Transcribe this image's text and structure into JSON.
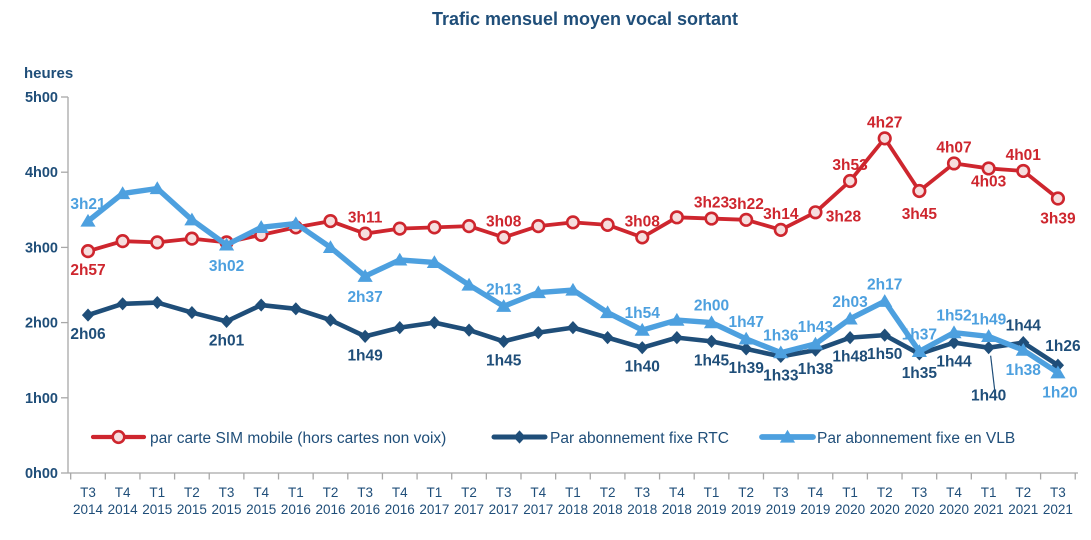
{
  "title": "Trafic mensuel moyen vocal sortant",
  "y_axis": {
    "unit_label": "heures",
    "tick_labels": [
      "0h00",
      "1h00",
      "2h00",
      "3h00",
      "4h00",
      "5h00"
    ]
  },
  "x_axis": {
    "quarters": [
      "T3",
      "T4",
      "T1",
      "T2",
      "T3",
      "T4",
      "T1",
      "T2",
      "T3",
      "T4",
      "T1",
      "T2",
      "T3",
      "T4",
      "T1",
      "T2",
      "T3",
      "T4",
      "T1",
      "T2",
      "T3",
      "T4",
      "T1",
      "T2",
      "T3",
      "T4",
      "T1",
      "T2",
      "T3"
    ],
    "years": [
      "2014",
      "2014",
      "2015",
      "2015",
      "2015",
      "2015",
      "2016",
      "2016",
      "2016",
      "2016",
      "2017",
      "2017",
      "2017",
      "2017",
      "2018",
      "2018",
      "2018",
      "2018",
      "2019",
      "2019",
      "2019",
      "2019",
      "2020",
      "2020",
      "2020",
      "2020",
      "2021",
      "2021",
      "2021"
    ]
  },
  "colors": {
    "sim_mobile": "#CE262E",
    "sim_marker_fill": "#F6DEDE",
    "fixe_rtc": "#1F4E79",
    "fixe_vlb": "#4DA0DF",
    "text_navy": "#1F4E79",
    "axis_gray": "#A8A8A8"
  },
  "chart_data": {
    "type": "line",
    "title": "Trafic mensuel moyen vocal sortant",
    "xlabel": "",
    "ylabel": "heures",
    "ylim": [
      0,
      5
    ],
    "grid": false,
    "legend_position": "bottom",
    "x": [
      "T3 2014",
      "T4 2014",
      "T1 2015",
      "T2 2015",
      "T3 2015",
      "T4 2015",
      "T1 2016",
      "T2 2016",
      "T3 2016",
      "T4 2016",
      "T1 2017",
      "T2 2017",
      "T3 2017",
      "T4 2017",
      "T1 2018",
      "T2 2018",
      "T3 2018",
      "T4 2018",
      "T1 2019",
      "T2 2019",
      "T3 2019",
      "T4 2019",
      "T1 2020",
      "T2 2020",
      "T3 2020",
      "T4 2020",
      "T1 2021",
      "T2 2021",
      "T3 2021"
    ],
    "series": [
      {
        "name": "par carte SIM mobile (hors cartes non voix)",
        "color": "#CE262E",
        "marker": "open-circle",
        "values": [
          "2h57",
          "3h05",
          "3h04",
          "3h07",
          "3h04",
          "3h10",
          "3h16",
          "3h21",
          "3h11",
          "3h15",
          "3h16",
          "3h17",
          "3h08",
          "3h17",
          "3h20",
          "3h18",
          "3h08",
          "3h24",
          "3h23",
          "3h22",
          "3h14",
          "3h28",
          "3h53",
          "4h27",
          "3h45",
          "4h07",
          "4h03",
          "4h01",
          "3h39"
        ],
        "labeled_points": [
          0,
          8,
          12,
          16,
          18,
          19,
          20,
          21,
          22,
          23,
          24,
          25,
          26,
          27,
          28
        ]
      },
      {
        "name": "Par abonnement fixe RTC",
        "color": "#1F4E79",
        "marker": "diamond",
        "values": [
          "2h06",
          "2h15",
          "2h16",
          "2h08",
          "2h01",
          "2h14",
          "2h11",
          "2h02",
          "1h49",
          "1h56",
          "2h00",
          "1h54",
          "1h45",
          "1h52",
          "1h56",
          "1h48",
          "1h40",
          "1h48",
          "1h45",
          "1h39",
          "1h33",
          "1h38",
          "1h48",
          "1h50",
          "1h35",
          "1h44",
          "1h40",
          "1h44",
          "1h26"
        ],
        "labeled_points": [
          0,
          4,
          8,
          12,
          16,
          18,
          19,
          20,
          21,
          22,
          23,
          24,
          25,
          26,
          27,
          28
        ]
      },
      {
        "name": "Par abonnement fixe en VLB",
        "color": "#4DA0DF",
        "marker": "triangle-up",
        "values": [
          "3h21",
          "3h43",
          "3h47",
          "3h22",
          "3h02",
          "3h16",
          "3h19",
          "3h00",
          "2h37",
          "2h50",
          "2h48",
          "2h30",
          "2h13",
          "2h24",
          "2h26",
          "2h08",
          "1h54",
          "2h02",
          "2h00",
          "1h47",
          "1h36",
          "1h43",
          "2h03",
          "2h17",
          "1h37",
          "1h52",
          "1h49",
          "1h38",
          "1h20"
        ],
        "labeled_points": [
          0,
          4,
          8,
          12,
          16,
          18,
          19,
          20,
          21,
          22,
          23,
          24,
          25,
          26,
          27,
          28
        ]
      }
    ]
  }
}
